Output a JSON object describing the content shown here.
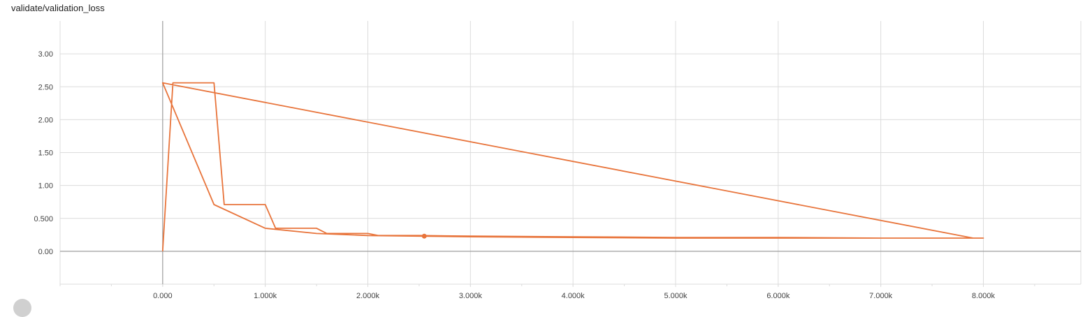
{
  "card": {
    "title": "validate/validation_loss"
  },
  "chart_data": {
    "type": "line",
    "title": "validate/validation_loss",
    "xlabel": "",
    "ylabel": "",
    "xlim": [
      -1000,
      8950
    ],
    "ylim": [
      -0.5,
      3.5
    ],
    "grid": true,
    "legend": "none",
    "color": "#e8743b",
    "x_ticks": [
      0,
      1000,
      2000,
      3000,
      4000,
      5000,
      6000,
      7000,
      8000
    ],
    "x_tick_labels": [
      "0.000",
      "1.000k",
      "2.000k",
      "3.000k",
      "4.000k",
      "5.000k",
      "6.000k",
      "7.000k",
      "8.000k"
    ],
    "y_ticks": [
      0,
      0.5,
      1,
      1.5,
      2,
      2.5,
      3
    ],
    "y_tick_labels": [
      "0.00",
      "0.500",
      "1.00",
      "1.50",
      "2.00",
      "2.50",
      "3.00"
    ],
    "series": [
      {
        "x": [
          0,
          100,
          500,
          600,
          1000,
          1100,
          1500,
          1600,
          2000,
          2100,
          2500,
          3000,
          4000,
          5000,
          6000,
          7000,
          8000,
          7900,
          0,
          500,
          1000,
          1500,
          2000,
          2500,
          3000,
          4000,
          5000,
          6000,
          7000,
          8000
        ],
        "y": [
          0.0,
          2.56,
          2.56,
          0.71,
          0.71,
          0.35,
          0.35,
          0.27,
          0.27,
          0.24,
          0.24,
          0.23,
          0.22,
          0.21,
          0.21,
          0.2,
          0.2,
          0.2,
          2.56,
          0.71,
          0.35,
          0.27,
          0.24,
          0.23,
          0.22,
          0.21,
          0.2,
          0.2,
          0.2,
          0.2
        ]
      }
    ],
    "highlight": {
      "x": 2550,
      "y": 0.23
    }
  }
}
